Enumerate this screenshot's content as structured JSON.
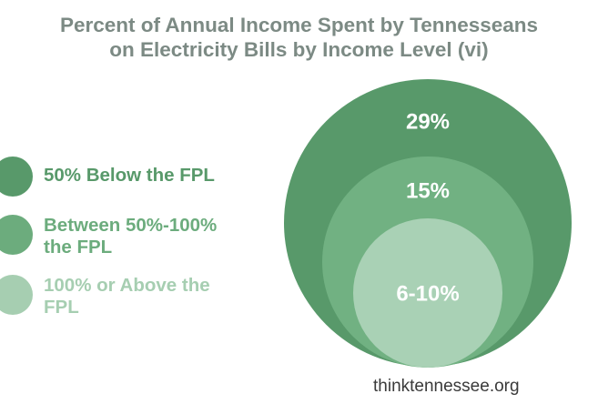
{
  "chart_data": {
    "type": "bubble",
    "title_lines": [
      "Percent of Annual Income Spent by Tennesseans",
      "on Electricity Bills by Income Level (vi)"
    ],
    "series": [
      {
        "name": "50% Below the FPL",
        "label": "29%",
        "color": "#58996a",
        "legend_color": "#58996a"
      },
      {
        "name": "Between 50%-100%\nthe FPL",
        "label": "15%",
        "color": "#71b182",
        "legend_color": "#6cac7d"
      },
      {
        "name": "100% or Above the\nFPL",
        "label": "6-10%",
        "color": "#a9d1b5",
        "legend_color": "#a6ceb1"
      }
    ]
  },
  "source": "thinktennessee.org"
}
